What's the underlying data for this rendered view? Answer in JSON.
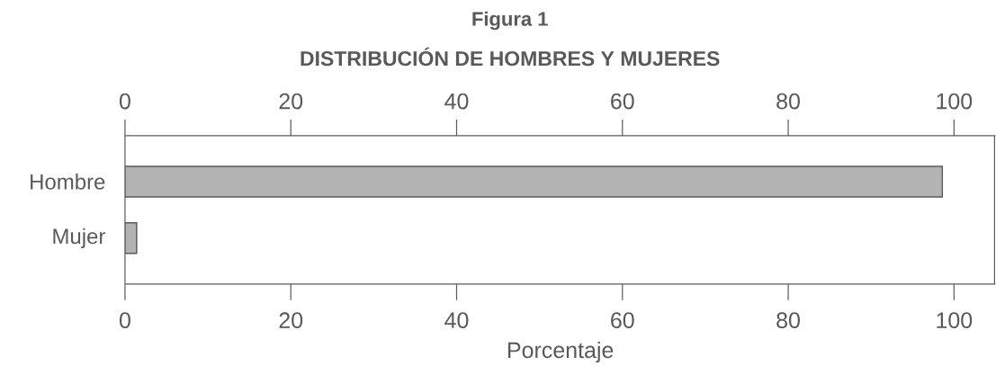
{
  "chart_data": {
    "type": "bar",
    "orientation": "horizontal",
    "title": "Figura 1",
    "subtitle": "DISTRIBUCIÓN DE HOMBRES Y MUJERES",
    "xlabel": "Porcentaje",
    "categories": [
      "Hombre",
      "Mujer"
    ],
    "values": [
      98.6,
      1.4
    ],
    "color": "#b3b3b3",
    "xlim": [
      0,
      105
    ],
    "xticks": [
      0,
      20,
      40,
      60,
      80,
      100
    ],
    "x2lim": [
      0,
      105
    ],
    "x2ticks": [
      0,
      20,
      40,
      60,
      80,
      100
    ]
  }
}
